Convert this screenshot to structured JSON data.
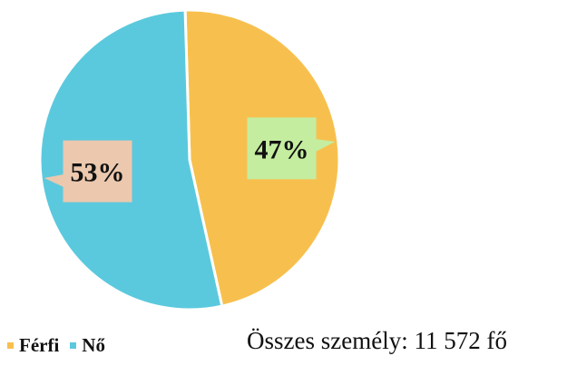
{
  "chart_data": {
    "type": "pie",
    "categories": [
      "Férfi",
      "Nő"
    ],
    "values": [
      47,
      53
    ],
    "data_labels": [
      "47%",
      "53%"
    ],
    "colors": [
      "#f7c04e",
      "#5bc9dd"
    ],
    "label_box_colors": [
      "#c4eda0",
      "#ebc8ae"
    ],
    "legend_position": "bottom-left",
    "start_angle": "12 o'clock",
    "direction": "clockwise"
  },
  "legend": {
    "items": [
      {
        "label": "Férfi",
        "color": "#f7c04e"
      },
      {
        "label": "Nő",
        "color": "#5bc9dd"
      }
    ]
  },
  "footer": {
    "total_text": "Összes személy: 11 572 fő"
  }
}
